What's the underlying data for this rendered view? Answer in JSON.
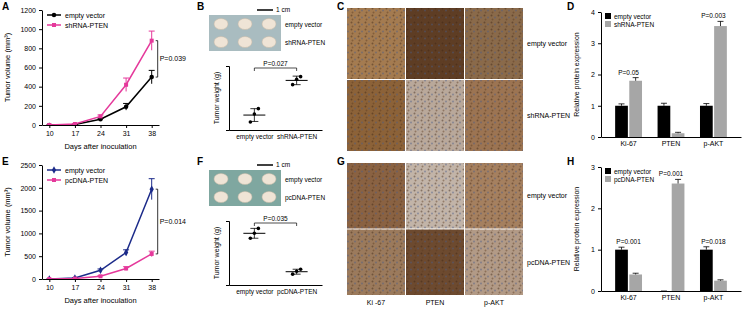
{
  "chart_data": [
    {
      "type": "line",
      "title": "A",
      "x": [
        10,
        17,
        24,
        31,
        38
      ],
      "xlim": [
        8,
        40
      ],
      "xticks": [
        10,
        17,
        24,
        31,
        38
      ],
      "ylim": [
        0,
        1200
      ],
      "yticks": [
        0,
        200,
        400,
        600,
        800,
        1000,
        1200
      ],
      "xlabel": "Days after inoculation",
      "ylabel": "Tumor volume (mm³)",
      "legend": "upper left",
      "series": [
        {
          "name": "empty vector",
          "color": "#000000",
          "marker": "circle",
          "values": [
            0,
            5,
            60,
            190,
            500
          ],
          "errors": [
            0,
            3,
            10,
            35,
            70
          ]
        },
        {
          "name": "shRNA-PTEN",
          "color": "#e5399b",
          "marker": "square",
          "values": [
            0,
            10,
            90,
            420,
            880
          ],
          "errors": [
            0,
            4,
            15,
            70,
            100
          ]
        }
      ],
      "annotations": [
        {
          "text": "P=0.039",
          "x": 38
        }
      ]
    },
    {
      "type": "dot",
      "title": "B",
      "categories": [
        "empty vector",
        "shRNA-PTEN"
      ],
      "values": [
        [
          0.35,
          0.5,
          0.6
        ],
        [
          1.05,
          1.15,
          1.2
        ]
      ],
      "means": [
        0.48,
        1.13
      ],
      "errors": [
        0.12,
        0.08
      ],
      "ylim": [
        0.2,
        1.4
      ],
      "tick_labels": "x",
      "ylabel": "Tumor weight (g)",
      "photo_labels": [
        "empty vector",
        "shRNA-PTEN"
      ],
      "scale_bar": "1 cm",
      "annotations": [
        {
          "text": "P=0.027"
        }
      ]
    },
    {
      "type": "bar",
      "title": "D",
      "categories": [
        "Ki-67",
        "PTEN",
        "p-AKT"
      ],
      "series": [
        {
          "name": "empty vector",
          "color": "#000000",
          "values": [
            1,
            1,
            1
          ],
          "errors": [
            0.06,
            0.08,
            0.07
          ]
        },
        {
          "name": "shRNA-PTEN",
          "color": "#a6a6a6",
          "values": [
            1.8,
            0.12,
            3.55
          ],
          "errors": [
            0.1,
            0.03,
            0.15
          ]
        }
      ],
      "ylim": [
        0,
        4
      ],
      "yticks": [
        0,
        1,
        2,
        3,
        4
      ],
      "ylabel": "Relative protein expression",
      "legend": "upper left",
      "p_values": [
        "P=0.05",
        null,
        "P=0.003"
      ]
    },
    {
      "type": "line",
      "title": "E",
      "x": [
        10,
        17,
        24,
        31,
        38
      ],
      "xlim": [
        8,
        40
      ],
      "xticks": [
        10,
        17,
        24,
        31,
        38
      ],
      "ylim": [
        0,
        2500
      ],
      "yticks": [
        0,
        500,
        1000,
        1500,
        2000,
        2500
      ],
      "xlabel": "Days after inoculation",
      "ylabel": "Tumor volume (mm³)",
      "legend": "upper left",
      "series": [
        {
          "name": "empty vector",
          "color": "#1c2b8a",
          "marker": "diamond",
          "values": [
            0,
            20,
            190,
            580,
            1970
          ],
          "errors": [
            0,
            5,
            30,
            60,
            230
          ]
        },
        {
          "name": "pcDNA-PTEN",
          "color": "#e5399b",
          "marker": "square",
          "values": [
            0,
            10,
            60,
            230,
            550
          ],
          "errors": [
            0,
            3,
            15,
            40,
            60
          ]
        }
      ],
      "annotations": [
        {
          "text": "P=0.014",
          "x": 38
        }
      ]
    },
    {
      "type": "dot",
      "title": "F",
      "categories": [
        "empty vector",
        "pcDNA-PTEN"
      ],
      "values": [
        [
          1.35,
          1.45,
          1.55
        ],
        [
          0.62,
          0.68,
          0.72
        ]
      ],
      "means": [
        1.45,
        0.67
      ],
      "errors": [
        0.1,
        0.05
      ],
      "ylim": [
        0.4,
        1.7
      ],
      "tick_labels": "x",
      "ylabel": "Tumor weight (g)",
      "photo_labels": [
        "empty vector",
        "pcDNA-PTEN"
      ],
      "scale_bar": "1 cm",
      "annotations": [
        {
          "text": "P=0.035"
        }
      ]
    },
    {
      "type": "bar",
      "title": "H",
      "categories": [
        "Ki-67",
        "PTEN",
        "p-AKT"
      ],
      "series": [
        {
          "name": "empty vector",
          "color": "#000000",
          "values": [
            1,
            0,
            1
          ],
          "errors": [
            0.06,
            0,
            0.07
          ]
        },
        {
          "name": "pcDNA-PTEN",
          "color": "#a6a6a6",
          "values": [
            0.4,
            2.6,
            0.25
          ],
          "errors": [
            0.03,
            0.1,
            0.02
          ]
        }
      ],
      "ylim": [
        0,
        3
      ],
      "yticks": [
        0,
        1,
        2,
        3
      ],
      "ylabel": "Relative protein expression",
      "legend": "upper left",
      "p_values": [
        "P=0.001",
        "P=0.001",
        "P=0.018"
      ]
    }
  ],
  "ihc_panels": [
    {
      "title": "C",
      "rows": [
        "empty vector",
        "shRNA-PTEN"
      ]
    },
    {
      "title": "G",
      "rows": [
        "empty vector",
        "pcDNA-PTEN"
      ],
      "columns": [
        "Ki -67",
        "PTEN",
        "p-AKT"
      ]
    }
  ]
}
